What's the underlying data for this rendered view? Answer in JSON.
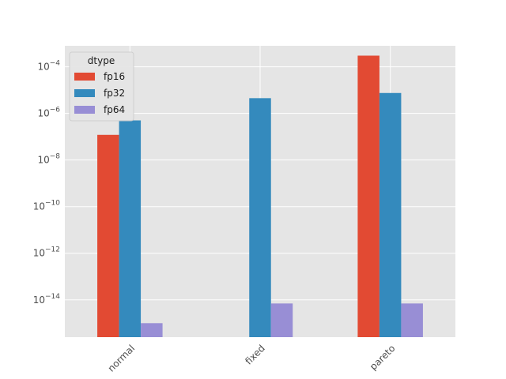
{
  "chart_data": {
    "type": "bar",
    "scale": "log",
    "categories": [
      "normal",
      "fixed",
      "pareto"
    ],
    "series": [
      {
        "name": "fp16",
        "color": "#E24A33",
        "values": [
          1.2e-07,
          null,
          0.0003
        ]
      },
      {
        "name": "fp32",
        "color": "#348ABD",
        "values": [
          5e-07,
          4.5e-06,
          7.5e-06
        ]
      },
      {
        "name": "fp64",
        "color": "#988ED5",
        "values": [
          1e-15,
          7e-15,
          7e-15
        ]
      }
    ],
    "legend_title": "dtype",
    "legend_position": "upper-left",
    "ylim_exponents": [
      -15.6,
      -3.1
    ],
    "ytick_exponents": [
      -14,
      -12,
      -10,
      -8,
      -6,
      -4
    ],
    "grid": true,
    "background": "#E5E5E5",
    "gridline_color": "#FFFFFF",
    "title": "",
    "xlabel": "",
    "ylabel": ""
  }
}
